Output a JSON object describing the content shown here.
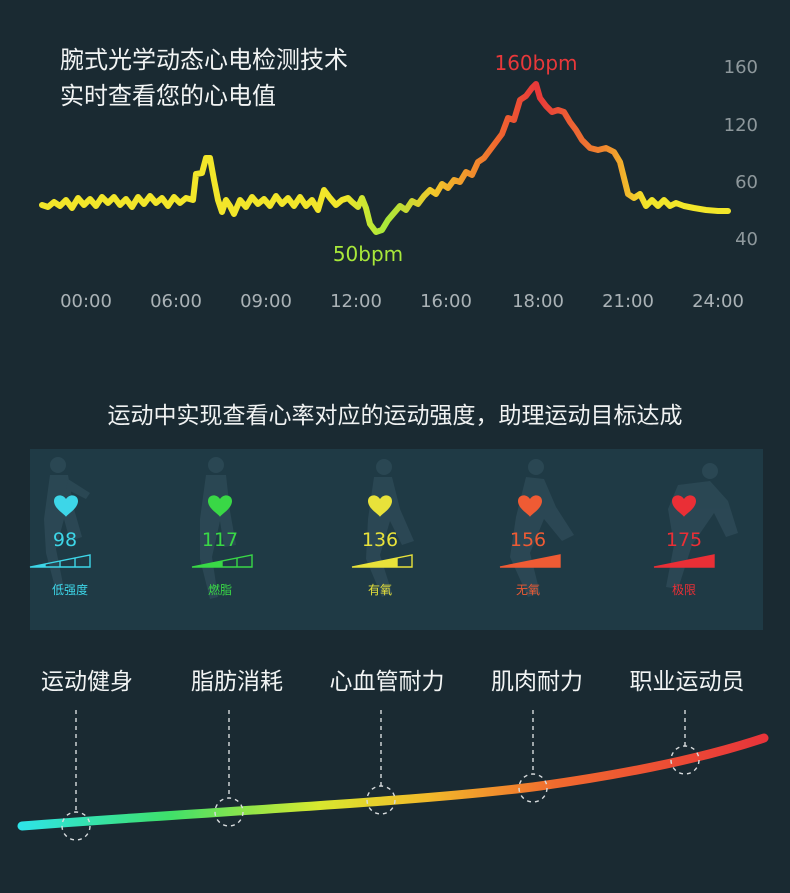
{
  "headline": {
    "line1": "腕式光学动态心电检测技术",
    "line2": "实时查看您的心电值"
  },
  "chart_data": {
    "type": "line",
    "y_ticks": [
      "160",
      "120",
      "60",
      "40"
    ],
    "x_ticks": [
      "00:00",
      "06:00",
      "09:00",
      "12:00",
      "16:00",
      "18:00",
      "21:00",
      "24:00"
    ],
    "annotations": {
      "peak": "160bpm",
      "low": "50bpm"
    },
    "colors": {
      "low": "#a8e83a",
      "mid": "#f2e62a",
      "high": "#e8383a"
    }
  },
  "intensity": {
    "subtitle": "运动中实现查看心率对应的运动强度，助理运动目标达成",
    "zones": [
      {
        "bpm": "98",
        "label": "低强度",
        "color": "#3dd6e8"
      },
      {
        "bpm": "117",
        "label": "燃脂",
        "color": "#39d846"
      },
      {
        "bpm": "136",
        "label": "有氧",
        "color": "#e8e23a"
      },
      {
        "bpm": "156",
        "label": "无氧",
        "color": "#ef5b34"
      },
      {
        "bpm": "175",
        "label": "极限",
        "color": "#ea2f36"
      }
    ]
  },
  "goals": [
    "运动健身",
    "脂肪消耗",
    "心血管耐力",
    "肌肉耐力",
    "职业运动员"
  ],
  "icons": {
    "heart": "heart-icon",
    "level": "intensity-bars-icon",
    "runner": "runner-silhouette-icon",
    "marker": "goal-marker-icon"
  }
}
